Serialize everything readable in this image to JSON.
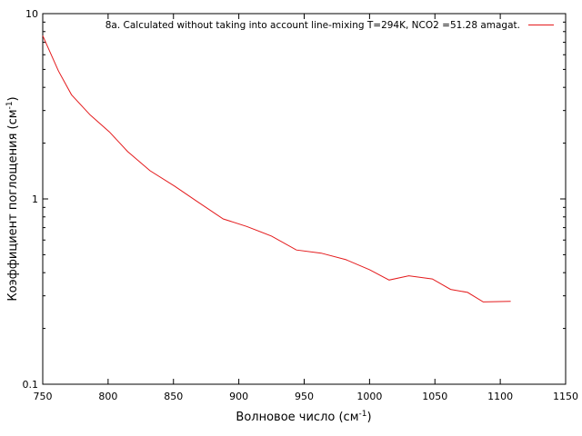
{
  "chart_data": {
    "type": "line",
    "title": "",
    "xlabel_main": "Волновое число (см",
    "xlabel_sup": "-1",
    "xlabel_end": ")",
    "ylabel_main": "Коэффициент поглощения (см",
    "ylabel_sup": "-1",
    "ylabel_end": ")",
    "xlim": [
      750,
      1150
    ],
    "ylim": [
      0.1,
      10
    ],
    "yscale": "log",
    "x_ticks": [
      750,
      800,
      850,
      900,
      950,
      1000,
      1050,
      1100,
      1150
    ],
    "y_ticks": [
      0.1,
      1,
      10
    ],
    "y_tick_labels": [
      "0.1",
      "1",
      "10"
    ],
    "legend_position": "top-right",
    "series": [
      {
        "name": "8a. Calculated without taking into account line-mixing T=294K, NCO2 =51.28 amagat.",
        "color": "#e41a1c",
        "x": [
          750,
          762,
          772,
          786,
          801,
          815,
          832,
          851,
          868,
          888,
          906,
          925,
          944,
          963,
          982,
          1000,
          1015,
          1030,
          1048,
          1062,
          1075,
          1087,
          1108
        ],
        "y": [
          7.6,
          4.9,
          3.65,
          2.85,
          2.3,
          1.8,
          1.42,
          1.17,
          0.97,
          0.78,
          0.71,
          0.63,
          0.53,
          0.51,
          0.47,
          0.415,
          0.365,
          0.385,
          0.37,
          0.325,
          0.313,
          0.278,
          0.28
        ]
      }
    ]
  }
}
